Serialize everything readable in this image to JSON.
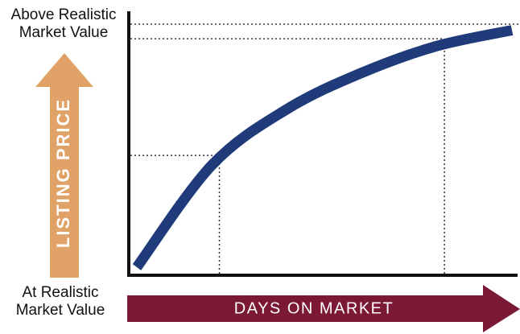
{
  "labels": {
    "top_line1": "Above Realistic",
    "top_line2": "Market Value",
    "bottom_line1": "At Realistic",
    "bottom_line2": "Market Value",
    "y_arrow": "LISTING PRICE",
    "x_arrow": "DAYS ON MARKET"
  },
  "colors": {
    "curve": "#1f3b7a",
    "x_arrow": "#7a1836",
    "y_arrow": "#e0a266",
    "axis": "#111111",
    "guides": "#333333"
  },
  "chart_data": {
    "type": "line",
    "xlabel": "DAYS ON MARKET",
    "ylabel": "LISTING PRICE",
    "x_ticks": [],
    "y_ticks": [],
    "xlim": [
      0,
      1
    ],
    "ylim": [
      0,
      1
    ],
    "series": [
      {
        "name": "",
        "points": [
          [
            0.0,
            0.0
          ],
          [
            0.2,
            0.42
          ],
          [
            0.4,
            0.65
          ],
          [
            0.6,
            0.8
          ],
          [
            0.8,
            0.91
          ],
          [
            1.0,
            0.975
          ]
        ]
      }
    ],
    "reference_lines": [
      {
        "axis": "y",
        "value": 1.0
      },
      {
        "axis": "y",
        "value": 0.94
      },
      {
        "axis": "y",
        "value": 0.46
      },
      {
        "axis": "x",
        "value": 0.22
      },
      {
        "axis": "x",
        "value": 0.82
      }
    ]
  }
}
